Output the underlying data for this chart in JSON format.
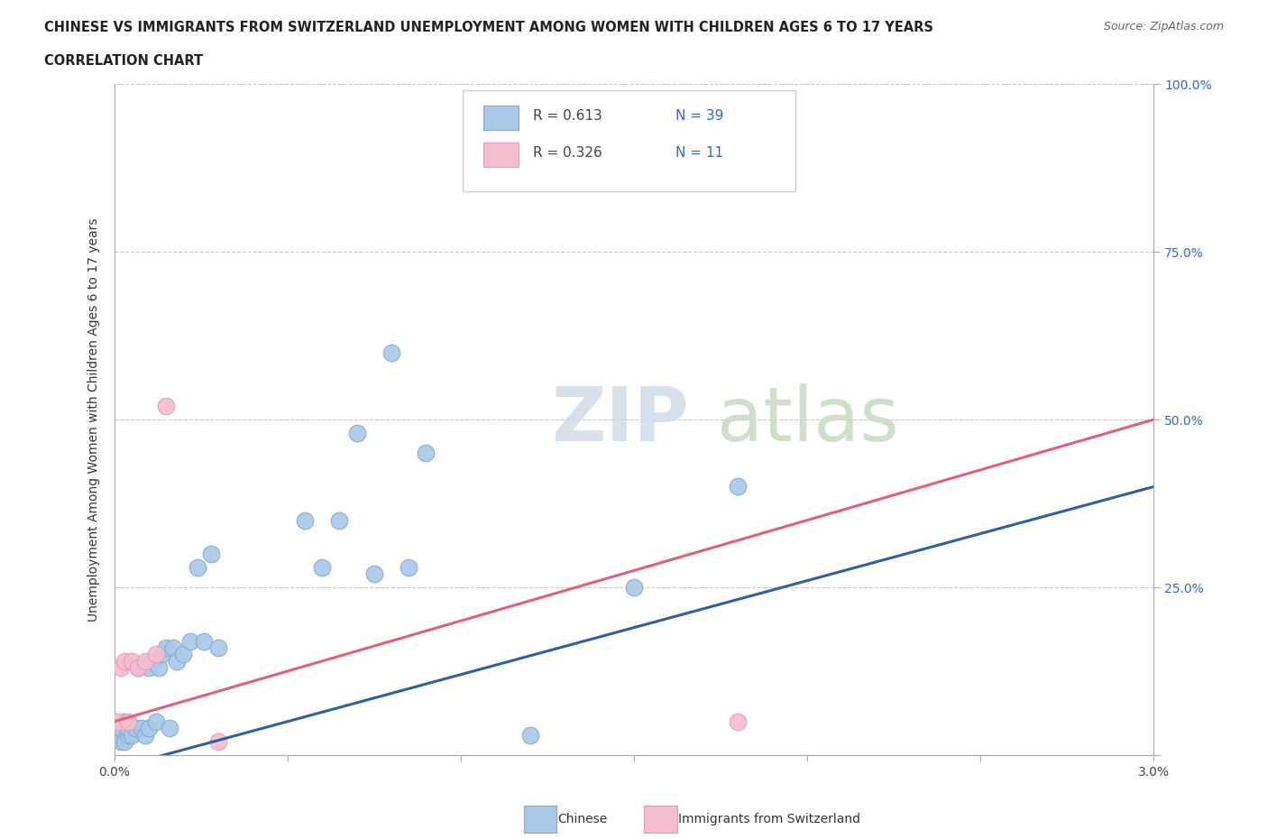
{
  "title_line1": "CHINESE VS IMMIGRANTS FROM SWITZERLAND UNEMPLOYMENT AMONG WOMEN WITH CHILDREN AGES 6 TO 17 YEARS",
  "title_line2": "CORRELATION CHART",
  "source_text": "Source: ZipAtlas.com",
  "ylabel": "Unemployment Among Women with Children Ages 6 to 17 years",
  "xlim": [
    0.0,
    0.03
  ],
  "ylim": [
    0.0,
    1.0
  ],
  "ytick_labels": [
    "",
    "25.0%",
    "50.0%",
    "75.0%",
    "100.0%"
  ],
  "chinese_color": "#aac8e8",
  "swiss_color": "#f5bdd0",
  "chinese_edge_color": "#80aad0",
  "swiss_edge_color": "#e898b8",
  "chinese_line_color": "#2e5fa3",
  "swiss_line_color": "#e0607a",
  "r_chinese": 0.613,
  "n_chinese": 39,
  "r_swiss": 0.326,
  "n_swiss": 11,
  "background_color": "#ffffff",
  "grid_color": "#c8c8c8",
  "chinese_line_y0": -0.02,
  "chinese_line_y1": 0.4,
  "swiss_line_y0": 0.05,
  "swiss_line_y1": 0.5,
  "chinese_x": [
    0.0001,
    0.0002,
    0.0002,
    0.0003,
    0.0003,
    0.0004,
    0.0004,
    0.0005,
    0.0006,
    0.0007,
    0.0008,
    0.0009,
    0.001,
    0.001,
    0.0011,
    0.0012,
    0.0013,
    0.0014,
    0.0015,
    0.0016,
    0.0017,
    0.0018,
    0.002,
    0.0022,
    0.0024,
    0.0026,
    0.0028,
    0.003,
    0.0055,
    0.006,
    0.0065,
    0.007,
    0.0075,
    0.008,
    0.0085,
    0.009,
    0.012,
    0.015,
    0.018
  ],
  "chinese_y": [
    0.03,
    0.02,
    0.04,
    0.02,
    0.05,
    0.03,
    0.04,
    0.03,
    0.04,
    0.13,
    0.04,
    0.03,
    0.04,
    0.13,
    0.14,
    0.05,
    0.13,
    0.15,
    0.16,
    0.04,
    0.16,
    0.14,
    0.15,
    0.17,
    0.28,
    0.17,
    0.3,
    0.16,
    0.35,
    0.28,
    0.35,
    0.48,
    0.27,
    0.6,
    0.28,
    0.45,
    0.03,
    0.25,
    0.4
  ],
  "swiss_x": [
    0.0001,
    0.0002,
    0.0003,
    0.0004,
    0.0005,
    0.0007,
    0.0009,
    0.0012,
    0.0015,
    0.003,
    0.018
  ],
  "swiss_y": [
    0.05,
    0.13,
    0.14,
    0.05,
    0.14,
    0.13,
    0.14,
    0.15,
    0.52,
    0.02,
    0.05
  ]
}
